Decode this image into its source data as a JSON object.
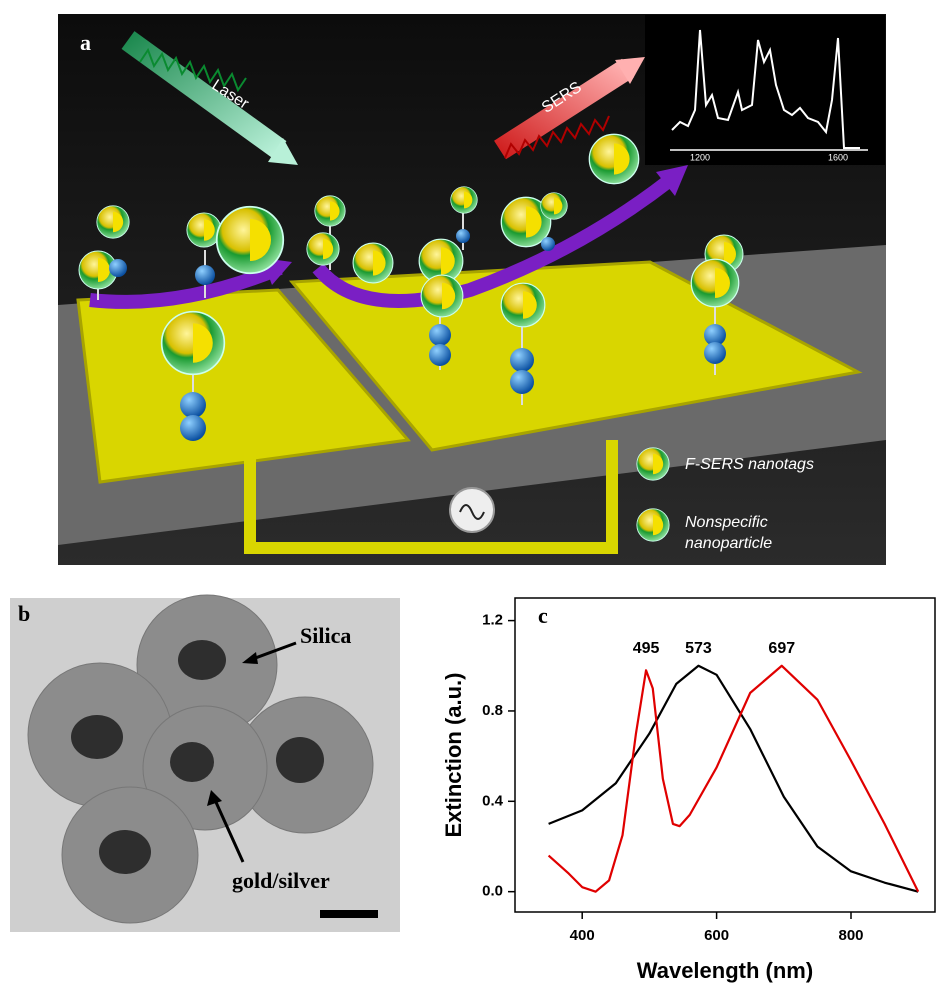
{
  "panel_a": {
    "label": "a",
    "laser": "Laser",
    "sers": "SERS",
    "spectrum_ticks": [
      "1200",
      "1600"
    ],
    "legend": [
      "F-SERS nanotags",
      "Nonspecific nanoparticle"
    ]
  },
  "panel_b": {
    "label": "b",
    "silica": "Silica",
    "core": "gold/silver"
  },
  "chart_data": {
    "type": "line",
    "panel_label": "c",
    "x_label": "Wavelength (nm)",
    "y_label": "Extinction (a.u.)",
    "xlim": [
      300,
      925
    ],
    "ylim": [
      -0.09,
      1.3
    ],
    "xticks": [
      400,
      600,
      800
    ],
    "yticks": [
      {
        "value": 0,
        "label": "0.0"
      },
      0.4,
      0.8,
      1.2
    ],
    "peak_labels": [
      495,
      573,
      697
    ],
    "series": [
      {
        "color": "#000000",
        "x": [
          350,
          400,
          450,
          500,
          540,
          573,
          600,
          650,
          700,
          750,
          800,
          850,
          900
        ],
        "values": [
          0.3,
          0.36,
          0.48,
          0.7,
          0.92,
          1.0,
          0.96,
          0.72,
          0.42,
          0.2,
          0.09,
          0.04,
          0.0
        ]
      },
      {
        "color": "#e00000",
        "x": [
          350,
          380,
          400,
          420,
          440,
          460,
          480,
          495,
          505,
          520,
          535,
          545,
          560,
          600,
          650,
          697,
          750,
          800,
          850,
          900
        ],
        "values": [
          0.16,
          0.08,
          0.02,
          0.0,
          0.05,
          0.25,
          0.7,
          0.98,
          0.9,
          0.5,
          0.3,
          0.29,
          0.34,
          0.55,
          0.88,
          1.0,
          0.85,
          0.58,
          0.3,
          0.0
        ]
      }
    ]
  }
}
